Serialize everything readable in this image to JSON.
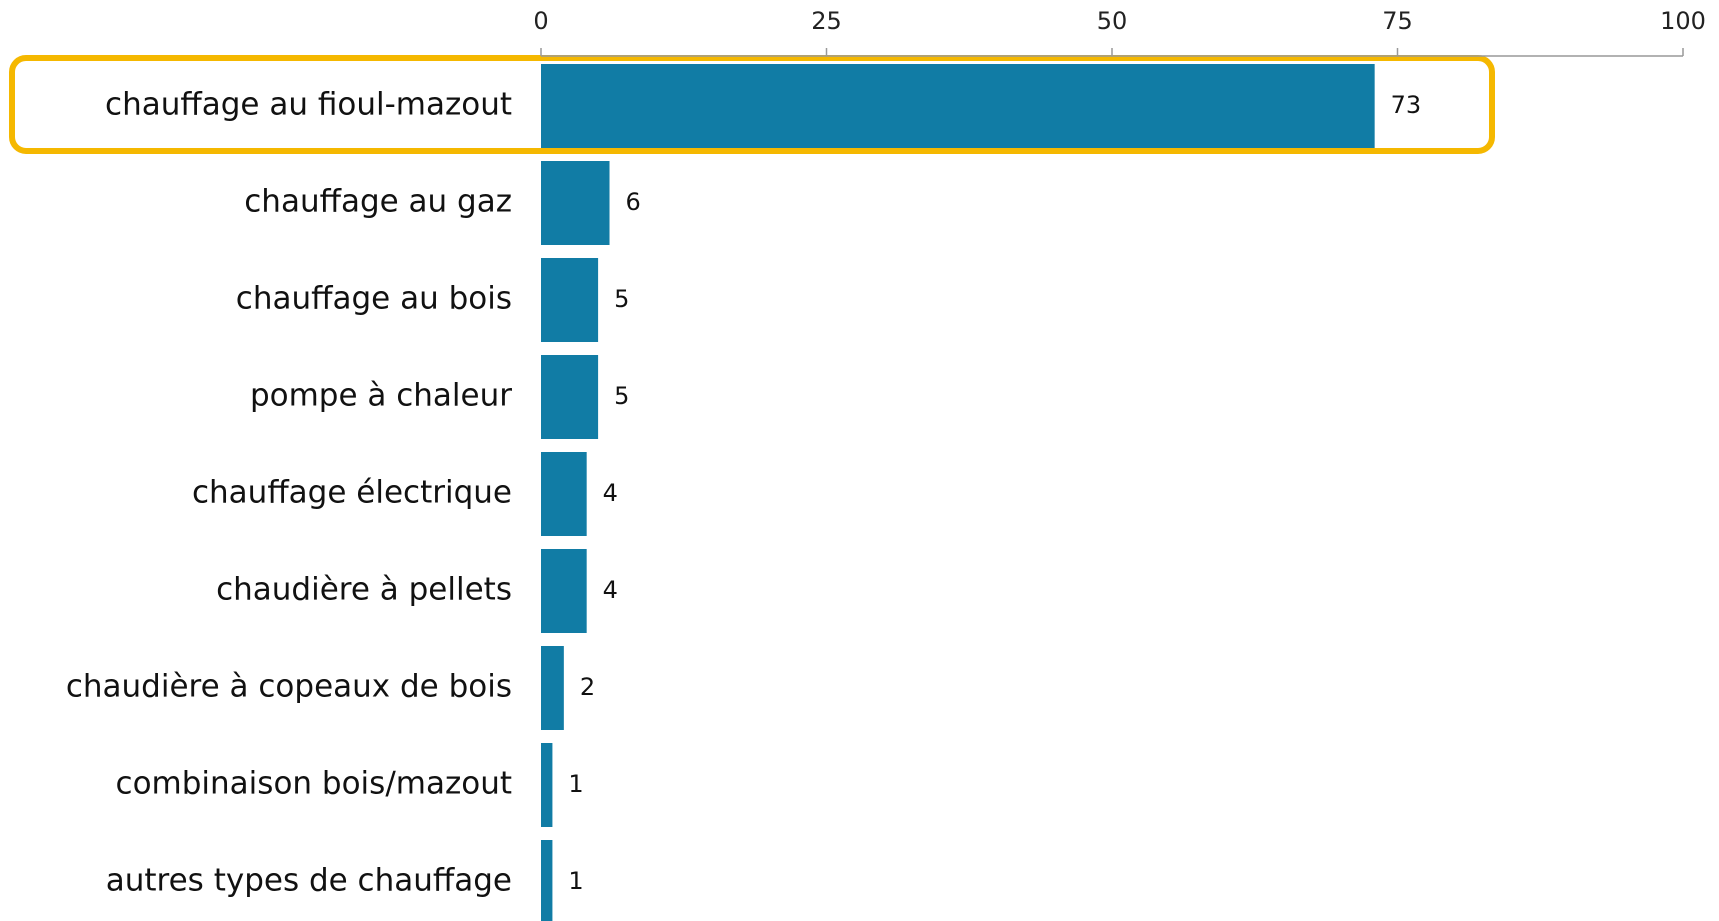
{
  "chart_data": {
    "type": "barh",
    "categories": [
      "chauffage au fioul-mazout",
      "chauffage au gaz",
      "chauffage au bois",
      "pompe à chaleur",
      "chauffage électrique",
      "chaudière à pellets",
      "chaudière à copeaux de bois",
      "combinaison bois/mazout",
      "autres types de chauffage"
    ],
    "values": [
      73,
      6,
      5,
      5,
      4,
      4,
      2,
      1,
      1
    ],
    "color": "#117ca5",
    "xlim": [
      0,
      100
    ],
    "xticks": [
      0,
      25,
      50,
      75,
      100
    ]
  }
}
